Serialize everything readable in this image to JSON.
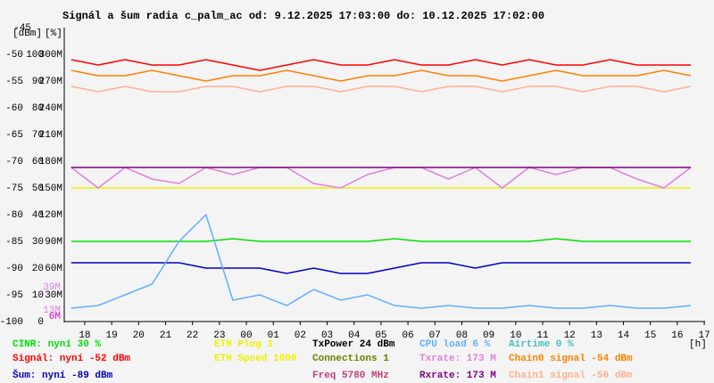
{
  "chart_data": {
    "type": "line",
    "title": "Signál a šum radia c_palm_ac od: 9.12.2025 17:03:00 do: 10.12.2025 17:02:00",
    "y_label": "[dBm]",
    "y2_label": "[%]",
    "x_label": "[h]",
    "x": [
      17.5,
      18.5,
      19.5,
      20.5,
      21.5,
      22.5,
      23.5,
      24.5,
      25.5,
      26.5,
      27.5,
      28.5,
      29.5,
      30.5,
      31.5,
      32.5,
      33.5,
      34.5,
      35.5,
      36.5,
      37.5,
      38.5,
      39.5,
      40.5
    ],
    "xlim": [
      17.24,
      41.03
    ],
    "xticks": [
      18,
      19,
      20,
      21,
      22,
      23,
      {
        "value": 24,
        "label": "00"
      },
      {
        "value": 25,
        "label": "01"
      },
      {
        "value": 26,
        "label": "02"
      },
      {
        "value": 27,
        "label": "03"
      },
      {
        "value": 28,
        "label": "04"
      },
      {
        "value": 29,
        "label": "05"
      },
      {
        "value": 30,
        "label": "06"
      },
      {
        "value": 31,
        "label": "07"
      },
      {
        "value": 32,
        "label": "08"
      },
      {
        "value": 33,
        "label": "09"
      },
      {
        "value": 34,
        "label": "10"
      },
      {
        "value": 35,
        "label": "11"
      },
      {
        "value": 36,
        "label": "12"
      },
      {
        "value": 37,
        "label": "13"
      },
      {
        "value": 38,
        "label": "14"
      },
      {
        "value": 39,
        "label": "15"
      },
      {
        "value": 40,
        "label": "16"
      },
      {
        "value": 41,
        "label": "17"
      }
    ],
    "ylim": [
      -100,
      -45
    ],
    "yticks": [
      -100,
      -95,
      -90,
      -85,
      -80,
      -75,
      -70,
      -65,
      -60,
      -55,
      -50,
      -45
    ],
    "y2lim": [
      0,
      110
    ],
    "y2ticks": [
      0,
      10,
      20,
      30,
      40,
      50,
      60,
      70,
      80,
      90,
      100
    ],
    "y3lim": [
      0,
      330
    ],
    "y3ticks": [
      {
        "value": 30,
        "label": "30M"
      },
      {
        "value": 60,
        "label": "60M"
      },
      {
        "value": 90,
        "label": "90M"
      },
      {
        "value": 120,
        "label": "120M"
      },
      {
        "value": 150,
        "label": "150M"
      },
      {
        "value": 180,
        "label": "180M"
      },
      {
        "value": 210,
        "label": "210M"
      },
      {
        "value": 240,
        "label": "240M"
      },
      {
        "value": 270,
        "label": "270M"
      },
      {
        "value": 300,
        "label": "300M"
      }
    ],
    "series": [
      {
        "name": "CINR: nyní 30 %",
        "color": "#00e000",
        "axis": "y2",
        "values": [
          30,
          30,
          30,
          30,
          30,
          30,
          31,
          30,
          30,
          30,
          30,
          30,
          31,
          30,
          30,
          30,
          30,
          30,
          31,
          30,
          30,
          30,
          30,
          30
        ]
      },
      {
        "name": "Signál: nyní -52 dBm",
        "color": "#ff0000",
        "values": [
          -51,
          -52,
          -51,
          -52,
          -52,
          -51,
          -52,
          -53,
          -52,
          -51,
          -52,
          -52,
          -51,
          -52,
          -52,
          -51,
          -52,
          -51,
          -52,
          -52,
          -51,
          -52,
          -52,
          -52
        ]
      },
      {
        "name": "Šum: nyní -89 dBm",
        "color": "#0000c0",
        "values": [
          -89,
          -89,
          -89,
          -89,
          -89,
          -90,
          -90,
          -90,
          -91,
          -90,
          -91,
          -91,
          -90,
          -89,
          -89,
          -90,
          -89,
          -89,
          -89,
          -89,
          -89,
          -89,
          -89,
          -89
        ]
      },
      {
        "name": "ETH Speed 1000",
        "color": "#f0f000",
        "axis": "y3",
        "values": [
          150,
          150,
          150,
          150,
          150,
          150,
          150,
          150,
          150,
          150,
          150,
          150,
          150,
          150,
          150,
          150,
          150,
          150,
          150,
          150,
          150,
          150,
          150,
          150
        ]
      },
      {
        "name": "CPU load 6 %",
        "color": "#60b0ff",
        "axis": "y2",
        "values": [
          5,
          6,
          10,
          14,
          30,
          40,
          8,
          10,
          6,
          12,
          8,
          10,
          6,
          5,
          6,
          5,
          5,
          6,
          5,
          5,
          6,
          5,
          5,
          6
        ]
      },
      {
        "name": "Txrate: 173 M",
        "color": "#e080e0",
        "axis": "y3",
        "values": [
          173,
          150,
          173,
          160,
          155,
          173,
          165,
          173,
          173,
          155,
          150,
          165,
          173,
          173,
          160,
          173,
          150,
          173,
          165,
          173,
          173,
          160,
          150,
          173
        ]
      },
      {
        "name": "Rxrate: 173 M",
        "color": "#800080",
        "axis": "y3",
        "values": [
          173,
          173,
          173,
          173,
          173,
          173,
          173,
          173,
          173,
          173,
          173,
          173,
          173,
          173,
          173,
          173,
          173,
          173,
          173,
          173,
          173,
          173,
          173,
          173
        ]
      },
      {
        "name": "Chain0 signal -54 dBm",
        "color": "#ff8000",
        "values": [
          -53,
          -54,
          -54,
          -53,
          -54,
          -55,
          -54,
          -54,
          -53,
          -54,
          -55,
          -54,
          -54,
          -53,
          -54,
          -54,
          -55,
          -54,
          -53,
          -54,
          -54,
          -54,
          -53,
          -54
        ]
      },
      {
        "name": "Chain1 signal -56 dBm",
        "color": "#ffb090",
        "values": [
          -56,
          -57,
          -56,
          -57,
          -57,
          -56,
          -56,
          -57,
          -56,
          -56,
          -57,
          -56,
          -56,
          -57,
          -56,
          -56,
          -57,
          -56,
          -56,
          -57,
          -56,
          -56,
          -57,
          -56
        ]
      }
    ],
    "legend_notes": [
      {
        "text": "ETH Plug 1",
        "color": "#f0f000"
      },
      {
        "text": "TxPower 24 dBm",
        "color": "#000000"
      },
      {
        "text": "Connections 1",
        "color": "#708000"
      },
      {
        "text": "Freq 5780 MHz",
        "color": "#c04080"
      },
      {
        "text": "Airtime 0 %",
        "color": "#40c0c0"
      }
    ],
    "annotations": [
      {
        "text": "39M",
        "value": 39,
        "color": "#e080e0"
      },
      {
        "text": "13M",
        "value": 13,
        "color": "#e080e0"
      },
      {
        "text": "6M",
        "value": 6,
        "color": "#e000e0"
      }
    ]
  }
}
